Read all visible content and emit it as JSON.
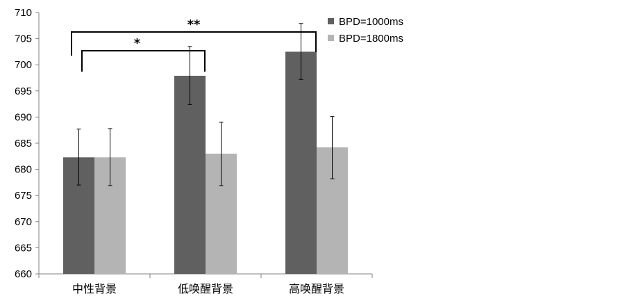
{
  "chart_data": {
    "type": "bar",
    "categories": [
      "中性背景",
      "低唤醒背景",
      "高唤醒背景"
    ],
    "series": [
      {
        "name": "BPD=1000ms",
        "color": "#606060",
        "values": [
          682.3,
          697.9,
          702.5
        ],
        "err_low": [
          677.0,
          692.4,
          697.2
        ],
        "err_high": [
          687.7,
          703.5,
          707.9
        ]
      },
      {
        "name": "BPD=1800ms",
        "color": "#b4b4b4",
        "values": [
          682.3,
          683.0,
          684.2
        ],
        "err_low": [
          676.9,
          676.9,
          678.2
        ],
        "err_high": [
          687.8,
          689.0,
          690.1
        ]
      }
    ],
    "yticks": [
      660,
      665,
      670,
      675,
      680,
      685,
      690,
      695,
      700,
      705,
      710
    ],
    "ylim": [
      660,
      710
    ],
    "legend_position": "top-right",
    "significance": [
      {
        "label": "*",
        "from_category": 0,
        "to_category": 1,
        "series": 0
      },
      {
        "label": "**",
        "from_category": 0,
        "to_category": 2,
        "series": 0
      }
    ]
  }
}
